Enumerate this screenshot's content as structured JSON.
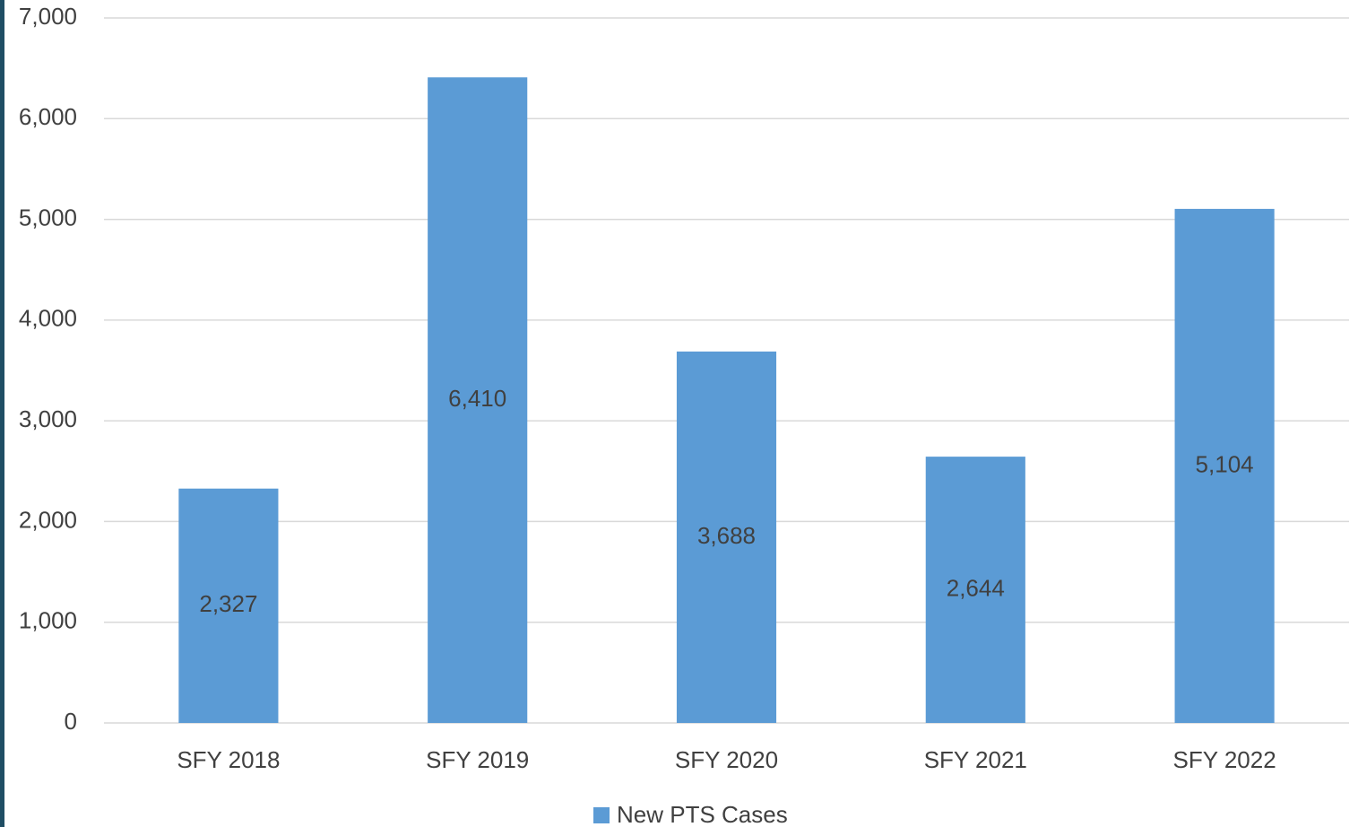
{
  "chart_data": {
    "type": "bar",
    "categories": [
      "SFY 2018",
      "SFY 2019",
      "SFY 2020",
      "SFY 2021",
      "SFY 2022"
    ],
    "series": [
      {
        "name": "New PTS Cases",
        "color": "#5b9bd5",
        "values": [
          2327,
          6410,
          3688,
          2644,
          5104
        ],
        "value_labels": [
          "2,327",
          "6,410",
          "3,688",
          "2,644",
          "5,104"
        ]
      }
    ],
    "ylim": [
      0,
      7000
    ],
    "yticks": [
      0,
      {
        "value": 1000,
        "label": "1,000"
      },
      {
        "value": 2000,
        "label": "2,000"
      },
      {
        "value": 3000,
        "label": "3,000"
      },
      {
        "value": 4000,
        "label": "4,000"
      },
      {
        "value": 5000,
        "label": "5,000"
      },
      {
        "value": 6000,
        "label": "6,000"
      },
      {
        "value": 7000,
        "label": "7,000"
      }
    ],
    "grid": true,
    "legend": "bottom"
  }
}
